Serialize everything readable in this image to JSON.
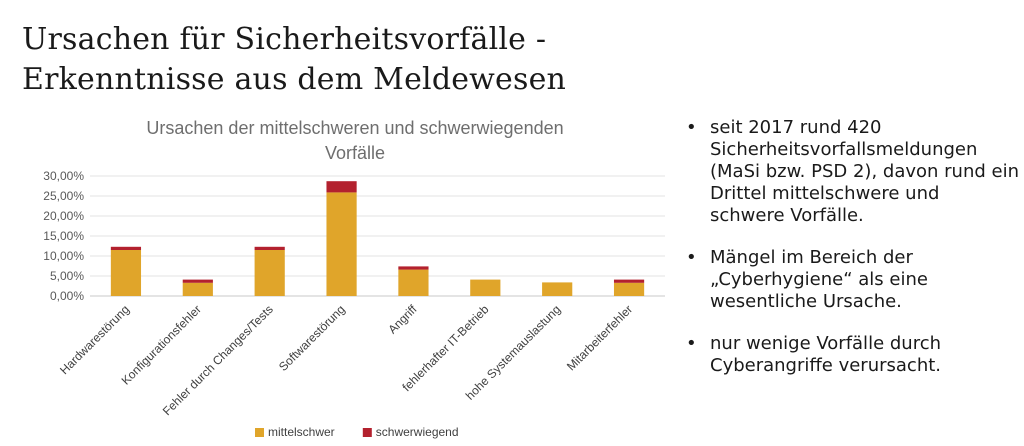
{
  "slide": {
    "title_line1": "Ursachen für Sicherheitsvorfälle -",
    "title_line2": "Erkenntnisse aus dem Meldewesen"
  },
  "bullets": [
    "seit 2017 rund 420 Sicherheitsvorfallsmeldungen (MaSi bzw. PSD 2), davon rund ein Drittel mittelschwere und schwere Vorfälle.",
    "Mängel im Bereich der „Cyberhygiene“ als eine wesentliche Ursache.",
    "nur wenige Vorfälle durch Cyberangriffe verursacht."
  ],
  "chart_data": {
    "type": "bar",
    "stacked": true,
    "title": "Ursachen der mittelschweren und schwerwiegenden Vorfälle",
    "title_lines": [
      "Ursachen der mittelschweren und schwerwiegenden",
      "Vorfälle"
    ],
    "categories": [
      "Hardwarestörung",
      "Konfigurationsfehler",
      "Fehler durch Changes/Tests",
      "Softwarestörung",
      "Angriff",
      "fehlerhafter IT-Betrieb",
      "hohe Systemauslastung",
      "Mitarbeiterfehler"
    ],
    "series": [
      {
        "name": "mittelschwer",
        "color": "#e0a52a",
        "values": [
          11.5,
          3.3,
          11.5,
          25.9,
          6.6,
          4.1,
          3.4,
          3.3
        ]
      },
      {
        "name": "schwerwiegend",
        "color": "#b3212e",
        "values": [
          0.8,
          0.8,
          0.8,
          2.8,
          0.8,
          0.0,
          0.0,
          0.8
        ]
      }
    ],
    "ylim": [
      0,
      30
    ],
    "yticks": [
      "0,00%",
      "5,00%",
      "10,00%",
      "15,00%",
      "20,00%",
      "25,00%",
      "30,00%"
    ],
    "ytick_values": [
      0,
      5,
      10,
      15,
      20,
      25,
      30
    ],
    "grid": true,
    "legend_position": "bottom"
  }
}
